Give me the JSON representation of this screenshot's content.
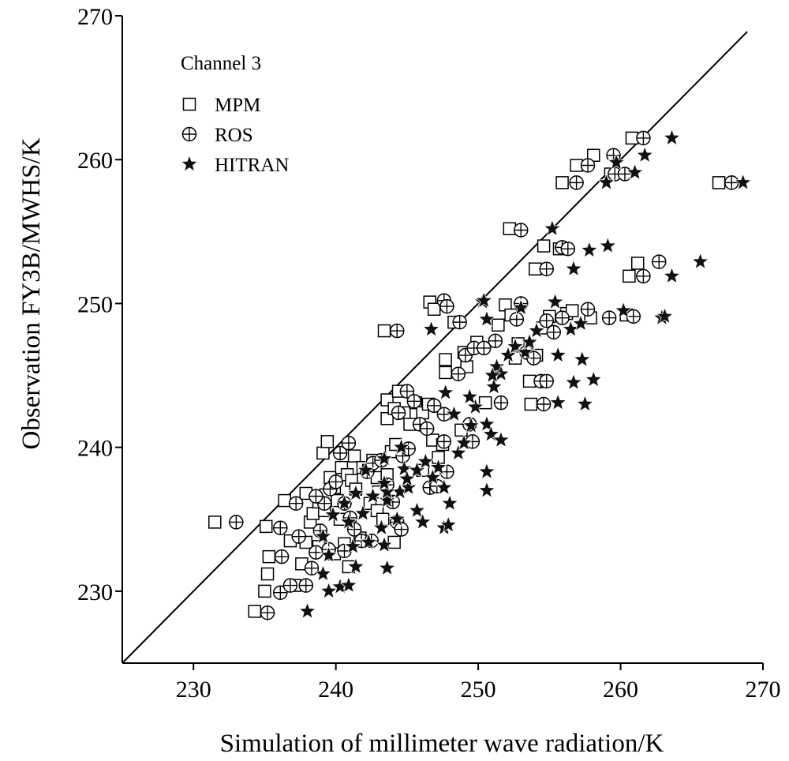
{
  "chart_data": {
    "type": "scatter",
    "title": "",
    "xlabel": "Simulation of millimeter wave radiation/K",
    "ylabel": "Observation FY3B/MWHS/K",
    "xlim": [
      225,
      270
    ],
    "ylim": [
      225,
      270
    ],
    "xticks": [
      "230",
      "240",
      "250",
      "260",
      "270"
    ],
    "yticks": [
      "230",
      "240",
      "250",
      "260",
      "270"
    ],
    "grid": false,
    "legend_position": "top-left",
    "legend_title": "Channel 3",
    "reference_line": "y = x",
    "series": [
      {
        "name": "MPM",
        "marker": "square",
        "points": [
          [
            234.3,
            228.6
          ],
          [
            235.0,
            230.0
          ],
          [
            235.2,
            231.2
          ],
          [
            235.3,
            232.4
          ],
          [
            235.1,
            234.5
          ],
          [
            236.8,
            233.5
          ],
          [
            237.1,
            230.4
          ],
          [
            237.6,
            231.9
          ],
          [
            237.9,
            233.4
          ],
          [
            238.2,
            234.8
          ],
          [
            238.4,
            235.4
          ],
          [
            238.8,
            236.2
          ],
          [
            237.9,
            236.8
          ],
          [
            239.2,
            235.6
          ],
          [
            239.3,
            236.7
          ],
          [
            239.6,
            237.9
          ],
          [
            239.1,
            239.6
          ],
          [
            239.4,
            240.4
          ],
          [
            239.9,
            237.2
          ],
          [
            240.1,
            236.3
          ],
          [
            240.3,
            235.0
          ],
          [
            240.6,
            233.3
          ],
          [
            240.9,
            231.7
          ],
          [
            240.4,
            238.6
          ],
          [
            240.8,
            238.1
          ],
          [
            241.1,
            237.7
          ],
          [
            241.4,
            237.1
          ],
          [
            241.3,
            239.4
          ],
          [
            241.9,
            238.6
          ],
          [
            242.3,
            238.4
          ],
          [
            242.6,
            239.1
          ],
          [
            242.9,
            237.9
          ],
          [
            243.0,
            236.9
          ],
          [
            242.4,
            236.1
          ],
          [
            242.9,
            235.6
          ],
          [
            243.3,
            235.0
          ],
          [
            243.6,
            238.1
          ],
          [
            243.9,
            239.7
          ],
          [
            244.2,
            240.2
          ],
          [
            243.6,
            242.0
          ],
          [
            243.6,
            243.3
          ],
          [
            244.1,
            242.7
          ],
          [
            244.4,
            243.9
          ],
          [
            244.8,
            242.4
          ],
          [
            245.2,
            241.6
          ],
          [
            245.6,
            243.1
          ],
          [
            246.1,
            242.4
          ],
          [
            246.5,
            243.0
          ],
          [
            246.8,
            240.5
          ],
          [
            247.2,
            239.3
          ],
          [
            247.5,
            240.2
          ],
          [
            243.4,
            248.1
          ],
          [
            246.6,
            250.1
          ],
          [
            246.9,
            249.6
          ],
          [
            247.7,
            246.1
          ],
          [
            247.7,
            245.2
          ],
          [
            248.3,
            248.7
          ],
          [
            249.0,
            246.6
          ],
          [
            249.2,
            245.6
          ],
          [
            249.9,
            247.3
          ],
          [
            250.5,
            243.1
          ],
          [
            251.4,
            248.5
          ],
          [
            251.9,
            249.9
          ],
          [
            252.3,
            249.2
          ],
          [
            252.6,
            246.2
          ],
          [
            252.8,
            247.2
          ],
          [
            253.6,
            244.6
          ],
          [
            253.7,
            243.0
          ],
          [
            254.1,
            246.4
          ],
          [
            254.5,
            248.3
          ],
          [
            255.0,
            249.1
          ],
          [
            256.2,
            249.3
          ],
          [
            256.6,
            249.5
          ],
          [
            257.9,
            249.0
          ],
          [
            260.4,
            249.2
          ],
          [
            260.6,
            251.9
          ],
          [
            261.2,
            252.8
          ],
          [
            254.0,
            252.4
          ],
          [
            254.6,
            254.0
          ],
          [
            255.7,
            253.8
          ],
          [
            252.2,
            255.2
          ],
          [
            255.9,
            258.4
          ],
          [
            256.9,
            259.6
          ],
          [
            258.1,
            260.3
          ],
          [
            259.3,
            259.0
          ],
          [
            260.8,
            261.5
          ],
          [
            266.9,
            258.4
          ],
          [
            231.5,
            234.8
          ],
          [
            236.4,
            236.3
          ],
          [
            238.8,
            233.1
          ],
          [
            239.9,
            232.6
          ],
          [
            241.7,
            233.7
          ],
          [
            244.1,
            233.4
          ],
          [
            246.1,
            238.4
          ],
          [
            248.8,
            241.2
          ]
        ]
      },
      {
        "name": "ROS",
        "marker": "circle-plus",
        "points": [
          [
            235.2,
            228.5
          ],
          [
            236.1,
            229.9
          ],
          [
            236.8,
            230.4
          ],
          [
            237.9,
            230.4
          ],
          [
            238.3,
            231.6
          ],
          [
            236.2,
            232.4
          ],
          [
            236.1,
            234.4
          ],
          [
            237.4,
            233.8
          ],
          [
            238.6,
            232.7
          ],
          [
            238.9,
            234.2
          ],
          [
            239.2,
            236.1
          ],
          [
            238.6,
            236.6
          ],
          [
            239.6,
            237.1
          ],
          [
            240.0,
            237.6
          ],
          [
            240.3,
            239.6
          ],
          [
            240.9,
            240.3
          ],
          [
            240.6,
            236.1
          ],
          [
            241.0,
            235.1
          ],
          [
            241.3,
            234.3
          ],
          [
            241.8,
            233.5
          ],
          [
            242.2,
            238.3
          ],
          [
            242.6,
            238.9
          ],
          [
            243.2,
            239.1
          ],
          [
            243.6,
            237.4
          ],
          [
            244.0,
            236.2
          ],
          [
            244.3,
            234.8
          ],
          [
            244.7,
            239.4
          ],
          [
            245.1,
            239.9
          ],
          [
            244.4,
            242.4
          ],
          [
            245.0,
            243.9
          ],
          [
            245.5,
            243.2
          ],
          [
            245.9,
            241.6
          ],
          [
            246.4,
            241.3
          ],
          [
            246.9,
            242.9
          ],
          [
            247.6,
            242.3
          ],
          [
            247.6,
            240.4
          ],
          [
            247.8,
            238.3
          ],
          [
            249.6,
            240.4
          ],
          [
            244.3,
            248.1
          ],
          [
            247.6,
            250.2
          ],
          [
            247.8,
            249.8
          ],
          [
            248.7,
            248.7
          ],
          [
            249.1,
            246.4
          ],
          [
            248.6,
            245.1
          ],
          [
            249.7,
            246.9
          ],
          [
            250.4,
            246.9
          ],
          [
            251.2,
            247.4
          ],
          [
            251.6,
            243.1
          ],
          [
            252.7,
            248.9
          ],
          [
            253.0,
            250.0
          ],
          [
            253.4,
            246.6
          ],
          [
            253.9,
            246.2
          ],
          [
            254.4,
            244.6
          ],
          [
            254.8,
            244.6
          ],
          [
            254.6,
            243.0
          ],
          [
            254.8,
            248.8
          ],
          [
            255.3,
            248.0
          ],
          [
            255.9,
            249.0
          ],
          [
            257.7,
            249.6
          ],
          [
            259.2,
            249.0
          ],
          [
            260.9,
            249.1
          ],
          [
            261.6,
            251.9
          ],
          [
            262.7,
            252.9
          ],
          [
            254.8,
            252.4
          ],
          [
            255.9,
            253.9
          ],
          [
            256.3,
            253.8
          ],
          [
            253.0,
            255.1
          ],
          [
            256.9,
            258.4
          ],
          [
            257.7,
            259.6
          ],
          [
            259.6,
            259.0
          ],
          [
            261.6,
            261.5
          ],
          [
            267.8,
            258.4
          ],
          [
            233.0,
            234.8
          ],
          [
            237.2,
            236.1
          ],
          [
            239.5,
            232.9
          ],
          [
            240.6,
            232.8
          ],
          [
            242.5,
            233.5
          ],
          [
            244.6,
            234.3
          ],
          [
            246.6,
            237.2
          ],
          [
            247.1,
            237.3
          ],
          [
            249.4,
            241.6
          ],
          [
            259.5,
            260.3
          ],
          [
            260.3,
            259.0
          ]
        ]
      },
      {
        "name": "HITRAN",
        "marker": "star",
        "points": [
          [
            238.0,
            228.6
          ],
          [
            239.5,
            230.0
          ],
          [
            240.3,
            230.3
          ],
          [
            240.9,
            230.4
          ],
          [
            239.1,
            231.2
          ],
          [
            241.4,
            231.7
          ],
          [
            243.6,
            231.6
          ],
          [
            239.5,
            232.5
          ],
          [
            241.2,
            233.1
          ],
          [
            242.3,
            233.4
          ],
          [
            243.4,
            233.2
          ],
          [
            239.1,
            233.8
          ],
          [
            240.9,
            234.8
          ],
          [
            241.9,
            235.4
          ],
          [
            243.2,
            234.4
          ],
          [
            244.3,
            235.0
          ],
          [
            239.8,
            235.3
          ],
          [
            240.6,
            236.1
          ],
          [
            241.4,
            236.8
          ],
          [
            242.6,
            236.6
          ],
          [
            243.6,
            236.3
          ],
          [
            244.5,
            236.9
          ],
          [
            245.1,
            237.2
          ],
          [
            244.8,
            238.5
          ],
          [
            245.7,
            238.4
          ],
          [
            246.3,
            239.0
          ],
          [
            247.2,
            238.6
          ],
          [
            246.8,
            237.9
          ],
          [
            245.7,
            235.6
          ],
          [
            246.1,
            234.8
          ],
          [
            247.6,
            234.4
          ],
          [
            247.9,
            234.6
          ],
          [
            248.0,
            236.1
          ],
          [
            247.6,
            237.2
          ],
          [
            248.6,
            239.6
          ],
          [
            249.0,
            240.3
          ],
          [
            249.5,
            241.5
          ],
          [
            249.8,
            242.8
          ],
          [
            250.6,
            241.6
          ],
          [
            250.9,
            240.9
          ],
          [
            251.6,
            240.5
          ],
          [
            250.6,
            238.3
          ],
          [
            250.6,
            237.0
          ],
          [
            249.4,
            243.5
          ],
          [
            251.3,
            245.6
          ],
          [
            251.6,
            245.1
          ],
          [
            252.1,
            246.4
          ],
          [
            252.6,
            247.0
          ],
          [
            253.3,
            246.6
          ],
          [
            253.6,
            247.3
          ],
          [
            254.1,
            248.1
          ],
          [
            255.6,
            246.4
          ],
          [
            255.6,
            243.1
          ],
          [
            256.7,
            244.5
          ],
          [
            257.5,
            243.0
          ],
          [
            257.3,
            246.1
          ],
          [
            258.1,
            244.7
          ],
          [
            256.5,
            248.2
          ],
          [
            257.2,
            248.6
          ],
          [
            250.6,
            248.9
          ],
          [
            250.3,
            250.1
          ],
          [
            250.4,
            250.2
          ],
          [
            253.0,
            249.7
          ],
          [
            255.4,
            250.1
          ],
          [
            256.7,
            252.4
          ],
          [
            257.8,
            253.7
          ],
          [
            259.1,
            254.0
          ],
          [
            255.2,
            255.2
          ],
          [
            262.9,
            249.0
          ],
          [
            263.1,
            249.1
          ],
          [
            260.2,
            249.5
          ],
          [
            263.6,
            251.9
          ],
          [
            265.6,
            252.9
          ],
          [
            259.0,
            258.4
          ],
          [
            259.7,
            259.8
          ],
          [
            261.0,
            259.1
          ],
          [
            261.7,
            260.3
          ],
          [
            263.6,
            261.5
          ],
          [
            268.6,
            258.4
          ],
          [
            242.1,
            238.4
          ],
          [
            243.4,
            239.2
          ],
          [
            244.6,
            240.0
          ],
          [
            245.0,
            237.8
          ],
          [
            246.7,
            248.2
          ],
          [
            243.6,
            236.9
          ],
          [
            243.4,
            237.5
          ],
          [
            247.7,
            243.8
          ],
          [
            248.3,
            242.3
          ],
          [
            251.1,
            244.2
          ],
          [
            251.0,
            245.0
          ]
        ]
      }
    ]
  }
}
